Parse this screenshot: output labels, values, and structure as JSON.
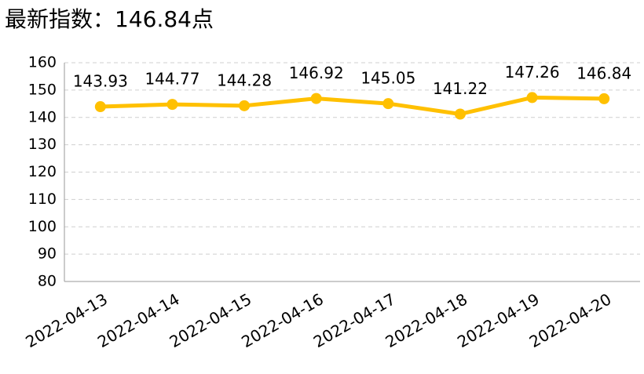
{
  "chart_data": {
    "type": "line",
    "title": "最新指数：146.84点",
    "categories": [
      "2022-04-13",
      "2022-04-14",
      "2022-04-15",
      "2022-04-16",
      "2022-04-17",
      "2022-04-18",
      "2022-04-19",
      "2022-04-20"
    ],
    "values": [
      143.93,
      144.77,
      144.28,
      146.92,
      145.05,
      141.22,
      147.26,
      146.84
    ],
    "color": "#FFC000",
    "ylim": [
      80,
      160
    ],
    "yticks": [
      80,
      90,
      100,
      110,
      120,
      130,
      140,
      150,
      160
    ],
    "grid": true
  }
}
